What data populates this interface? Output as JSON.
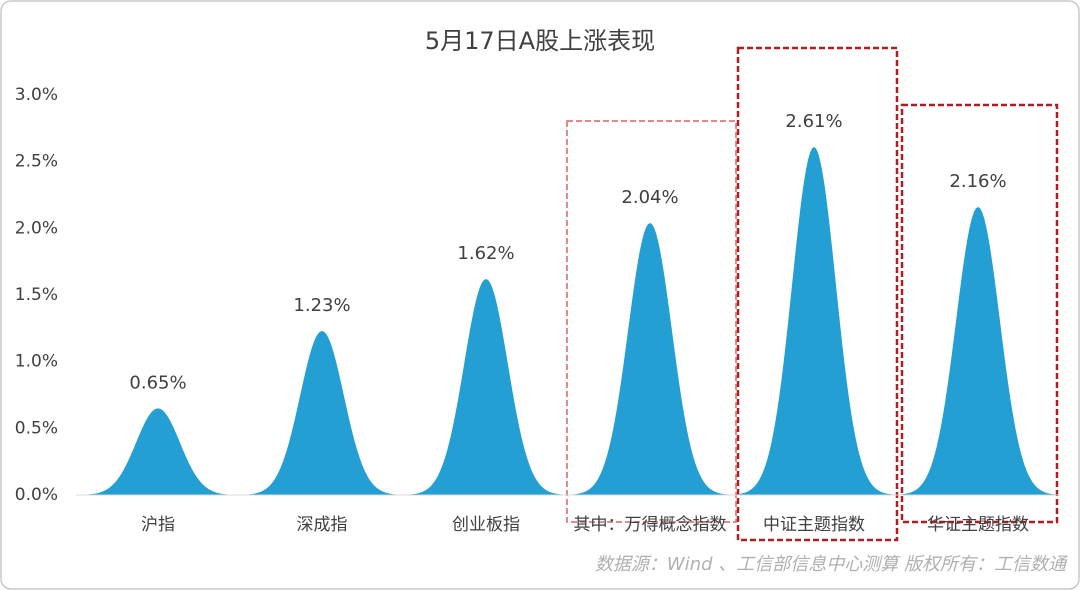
{
  "chart_data": {
    "type": "bell",
    "title": "5月17日A股上涨表现",
    "categories": [
      "沪指",
      "深成指",
      "创业板指",
      "其中：万得概念指数",
      "中证主题指数",
      "华证主题指数"
    ],
    "values": [
      0.65,
      1.23,
      1.62,
      2.04,
      2.61,
      2.16
    ],
    "value_labels": [
      "0.65%",
      "1.23%",
      "1.62%",
      "2.04%",
      "2.61%",
      "2.16%"
    ],
    "color": "#239fd4",
    "ylim": [
      0,
      3
    ],
    "yticks": [
      {
        "value": 0,
        "label": "0.0%"
      },
      {
        "value": 0.5,
        "label": "0.5%"
      },
      {
        "value": 1,
        "label": "1.0%"
      },
      {
        "value": 1.5,
        "label": "1.5%"
      },
      {
        "value": 2,
        "label": "2.0%"
      },
      {
        "value": 2.5,
        "label": "2.5%"
      },
      {
        "value": 3,
        "label": "3.0%"
      }
    ],
    "source": "数据源：Wind 、工信部信息中心测算   版权所有：工信数通"
  }
}
